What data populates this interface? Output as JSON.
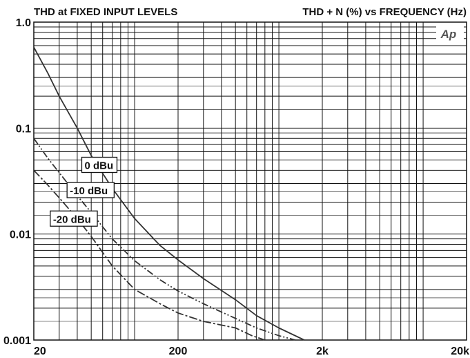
{
  "chart_data": {
    "type": "line",
    "title_left": "THD at FIXED INPUT LEVELS",
    "title_right": "THD + N (%) vs FREQUENCY (Hz)",
    "x_scale": "log",
    "y_scale": "log",
    "xlim": [
      20,
      20000
    ],
    "ylim": [
      0.001,
      1.0
    ],
    "x_ticks": [
      {
        "value": 20,
        "label": "20"
      },
      {
        "value": 200,
        "label": "200"
      },
      {
        "value": 2000,
        "label": "2k"
      },
      {
        "value": 20000,
        "label": "20k"
      }
    ],
    "y_ticks": [
      {
        "value": 1.0,
        "label": "1.0"
      },
      {
        "value": 0.1,
        "label": "0.1"
      },
      {
        "value": 0.01,
        "label": "0.01"
      },
      {
        "value": 0.001,
        "label": "0.001"
      }
    ],
    "grid": true,
    "watermark": "Ap",
    "series": [
      {
        "name": "0 dBu",
        "style": "solid",
        "x": [
          20,
          25,
          30,
          40,
          50,
          70,
          100,
          150,
          200,
          300,
          500,
          700,
          1000,
          1500
        ],
        "y": [
          0.58,
          0.33,
          0.2,
          0.1,
          0.055,
          0.027,
          0.014,
          0.0078,
          0.0057,
          0.0038,
          0.0024,
          0.0017,
          0.0013,
          0.001
        ]
      },
      {
        "name": "-10 dBu",
        "style": "dashdotdot",
        "x": [
          20,
          25,
          30,
          40,
          50,
          70,
          100,
          150,
          200,
          300,
          500,
          700,
          1000,
          1300
        ],
        "y": [
          0.08,
          0.052,
          0.038,
          0.023,
          0.016,
          0.009,
          0.0056,
          0.0037,
          0.0029,
          0.0022,
          0.0016,
          0.0013,
          0.0011,
          0.001
        ]
      },
      {
        "name": "-20 dBu",
        "style": "dashdot",
        "x": [
          20,
          25,
          30,
          40,
          50,
          70,
          100,
          150,
          200,
          300,
          500,
          650,
          800
        ],
        "y": [
          0.04,
          0.029,
          0.022,
          0.014,
          0.0095,
          0.005,
          0.003,
          0.0022,
          0.0018,
          0.0015,
          0.0013,
          0.0011,
          0.001
        ]
      }
    ],
    "annotations": [
      {
        "text": "0 dBu",
        "series": 0
      },
      {
        "text": "-10 dBu",
        "series": 1
      },
      {
        "text": "-20 dBu",
        "series": 2
      }
    ]
  }
}
